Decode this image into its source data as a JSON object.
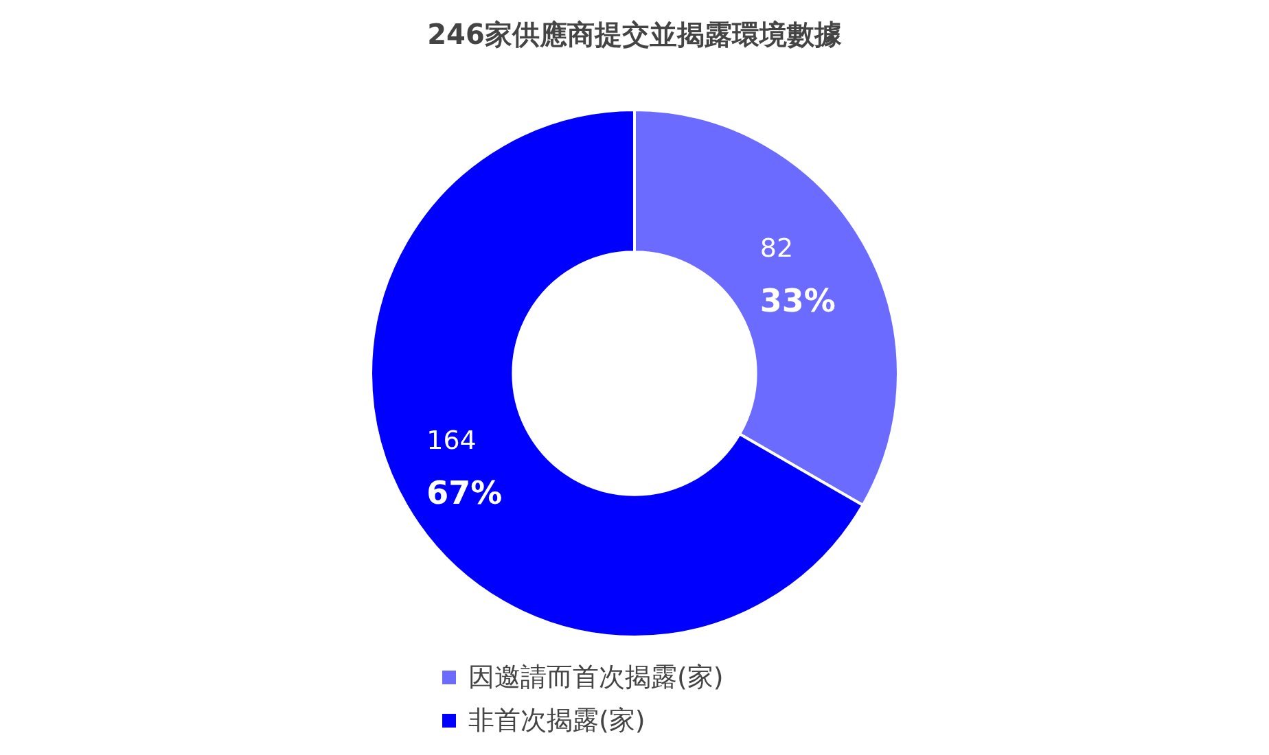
{
  "chart_data": {
    "type": "donut",
    "title": "246家供應商提交並揭露環境數據",
    "categories": [
      "因邀請而首次揭露(家)",
      "非首次揭露(家)"
    ],
    "values": [
      82,
      164
    ],
    "colors": [
      "#6b6bff",
      "#0000ff"
    ],
    "value_labels": [
      "82\n33%",
      "164\n67%"
    ],
    "legend": "bottom"
  }
}
